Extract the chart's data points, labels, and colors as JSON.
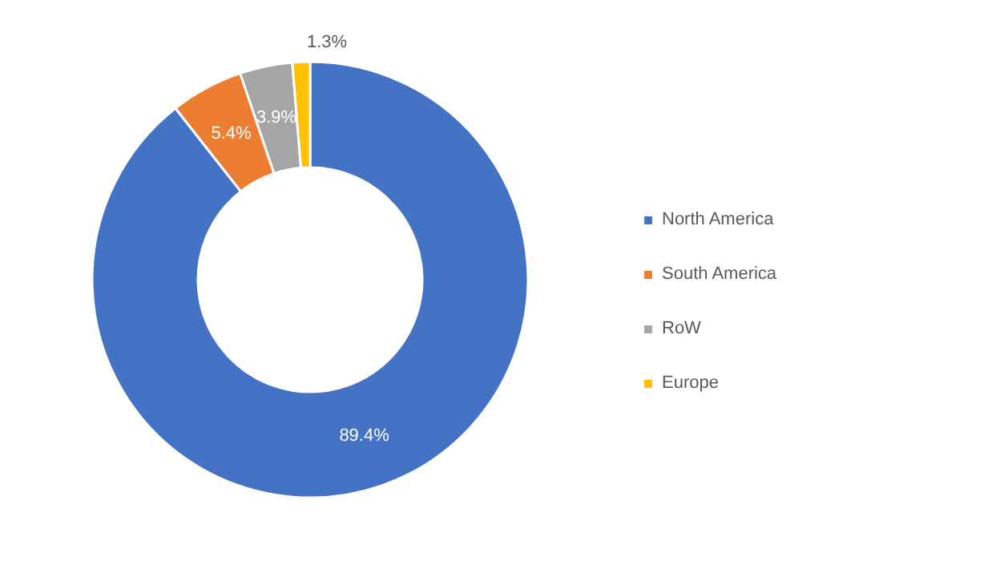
{
  "chart_data": {
    "type": "donut",
    "categories": [
      "North America",
      "South America",
      "RoW",
      "Europe"
    ],
    "values": [
      89.4,
      5.4,
      3.9,
      1.3
    ],
    "colors": [
      "#4472c4",
      "#ed7d31",
      "#a5a5a5",
      "#ffc000"
    ],
    "value_labels": [
      "89.4%",
      "5.4%",
      "3.9%",
      "1.3%"
    ],
    "legend": "right"
  }
}
